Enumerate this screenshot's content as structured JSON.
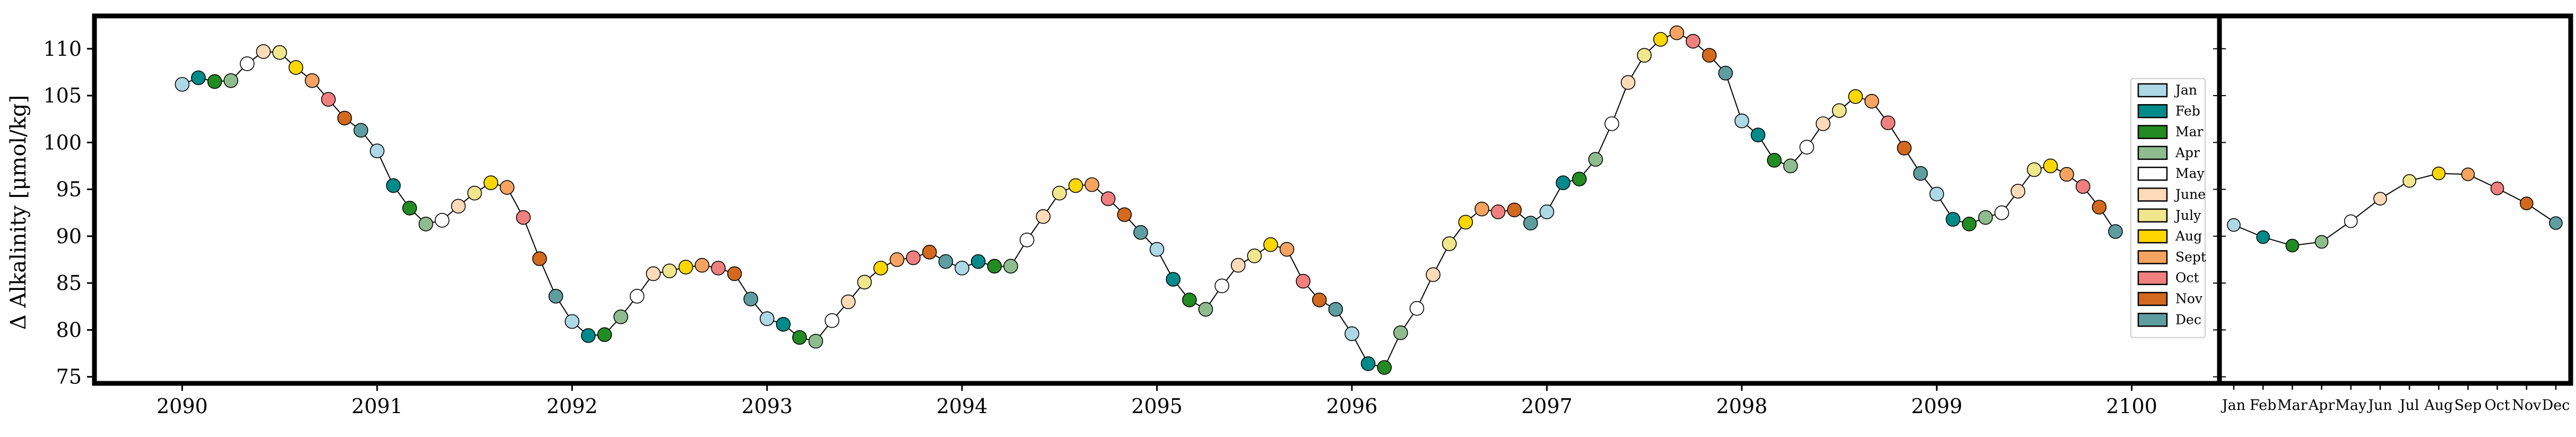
{
  "chart_data": [
    {
      "type": "line",
      "title": "",
      "xlabel": "",
      "ylabel": "Δ Alkalinity [μmol/kg]",
      "x_ticks": [
        "2090",
        "2091",
        "2092",
        "2093",
        "2094",
        "2095",
        "2096",
        "2097",
        "2098",
        "2099",
        "2100"
      ],
      "y_ticks": [
        "75",
        "80",
        "85",
        "90",
        "95",
        "100",
        "105",
        "110"
      ],
      "xlim": [
        2089.55,
        2100.45
      ],
      "ylim": [
        74.3,
        113.5
      ],
      "grid": false,
      "legend_position": "right",
      "start_year": 2090,
      "months": [
        "Jan",
        "Feb",
        "Mar",
        "Apr",
        "May",
        "June",
        "July",
        "Aug",
        "Sept",
        "Oct",
        "Nov",
        "Dec"
      ],
      "month_colors": [
        "#add8e6",
        "#008b8b",
        "#228b22",
        "#8fbc8f",
        "#ffffff",
        "#ffdab9",
        "#f0e68c",
        "#ffd700",
        "#f4a460",
        "#f08080",
        "#d2691e",
        "#5f9ea0"
      ],
      "values": [
        106.2,
        106.9,
        106.5,
        106.6,
        108.4,
        109.7,
        109.6,
        108.0,
        106.6,
        104.6,
        102.6,
        101.3,
        99.1,
        95.4,
        93.0,
        91.3,
        91.7,
        93.2,
        94.6,
        95.7,
        95.2,
        92.0,
        87.6,
        83.6,
        80.9,
        79.4,
        79.5,
        81.4,
        83.6,
        86.0,
        86.3,
        86.7,
        86.9,
        86.6,
        86.0,
        83.3,
        81.2,
        80.6,
        79.2,
        78.8,
        81.0,
        83.0,
        85.1,
        86.6,
        87.5,
        87.7,
        88.3,
        87.3,
        86.6,
        87.3,
        86.8,
        86.8,
        89.6,
        92.1,
        94.6,
        95.4,
        95.5,
        94.0,
        92.3,
        90.4,
        88.6,
        85.4,
        83.2,
        82.2,
        84.7,
        86.9,
        87.9,
        89.1,
        88.6,
        85.2,
        83.2,
        82.2,
        79.6,
        76.4,
        76.0,
        79.7,
        82.3,
        85.9,
        89.2,
        91.5,
        92.9,
        92.6,
        92.8,
        91.4,
        92.6,
        95.7,
        96.1,
        98.2,
        102.0,
        106.4,
        109.3,
        111.0,
        111.7,
        110.8,
        109.3,
        107.4,
        102.3,
        100.8,
        98.1,
        97.5,
        99.5,
        102.0,
        103.4,
        104.9,
        104.4,
        102.1,
        99.4,
        96.7,
        94.5,
        91.8,
        91.3,
        92.0,
        92.5,
        94.8,
        97.1,
        97.5,
        96.6,
        95.3,
        93.1,
        90.5
      ]
    },
    {
      "type": "line",
      "title": "",
      "xlabel": "",
      "ylabel": "",
      "categories": [
        "Jan",
        "Feb",
        "Mar",
        "Apr",
        "May",
        "Jun",
        "Jul",
        "Aug",
        "Sep",
        "Oct",
        "Nov",
        "Dec"
      ],
      "values": [
        91.2,
        89.9,
        89.0,
        89.4,
        91.6,
        94.0,
        95.9,
        96.7,
        96.6,
        95.1,
        93.5,
        91.4
      ],
      "ylim": [
        74.3,
        113.5
      ],
      "grid": false
    }
  ]
}
